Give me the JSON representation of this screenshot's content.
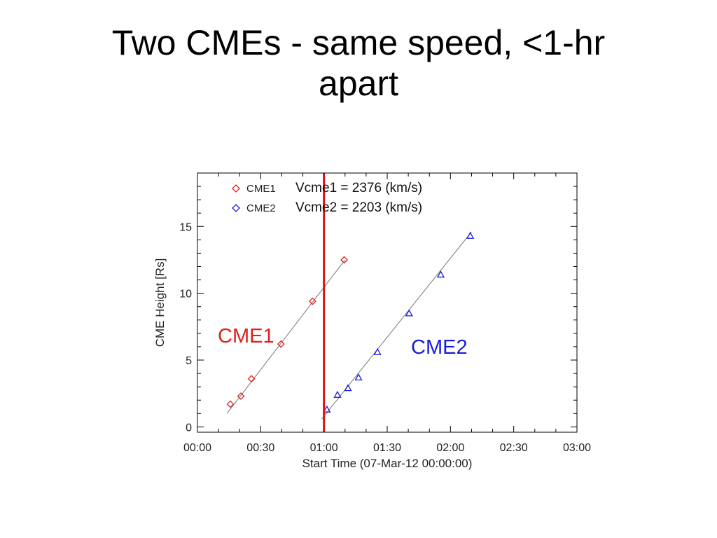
{
  "slide": {
    "title_line1": "Two CMEs - same speed, <1-hr",
    "title_line2": "apart"
  },
  "colors": {
    "cme1": "#e0201c",
    "cme2": "#1a1ae0",
    "marker_line": "#d61414",
    "fit_line": "#777777"
  },
  "chart_data": {
    "type": "scatter",
    "xlabel": "Start Time (07-Mar-12 00:00:00)",
    "ylabel": "CME Height [Rs]",
    "x_units": "minutes after start time",
    "xlim": [
      0,
      180
    ],
    "ylim": [
      -0.4,
      19
    ],
    "x_ticks": [
      {
        "value": 0,
        "label": "00:00"
      },
      {
        "value": 30,
        "label": "00:30"
      },
      {
        "value": 60,
        "label": "01:00"
      },
      {
        "value": 90,
        "label": "01:30"
      },
      {
        "value": 120,
        "label": "02:00"
      },
      {
        "value": 150,
        "label": "02:30"
      },
      {
        "value": 180,
        "label": "03:00"
      }
    ],
    "y_ticks": [
      {
        "value": 0,
        "label": "0"
      },
      {
        "value": 5,
        "label": "5"
      },
      {
        "value": 10,
        "label": "10"
      },
      {
        "value": 15,
        "label": "15"
      }
    ],
    "vertical_marker_x": 60,
    "series": [
      {
        "name": "CME1",
        "marker": "diamond",
        "speed_label": "Vcme1 =  2376 (km/s)",
        "callout": "CME1",
        "points": [
          {
            "x": 15.6,
            "y": 1.7
          },
          {
            "x": 20.6,
            "y": 2.3
          },
          {
            "x": 25.6,
            "y": 3.6
          },
          {
            "x": 39.6,
            "y": 6.2
          },
          {
            "x": 54.6,
            "y": 9.4
          },
          {
            "x": 69.6,
            "y": 12.5
          }
        ],
        "fit": [
          {
            "x": 14.0,
            "y": 1.0
          },
          {
            "x": 70.0,
            "y": 12.5
          }
        ]
      },
      {
        "name": "CME2",
        "marker": "triangle",
        "speed_label": "Vcme2 =  2203 (km/s)",
        "callout": "CME2",
        "points": [
          {
            "x": 61.4,
            "y": 1.3
          },
          {
            "x": 66.4,
            "y": 2.4
          },
          {
            "x": 71.4,
            "y": 2.9
          },
          {
            "x": 76.4,
            "y": 3.7
          },
          {
            "x": 85.4,
            "y": 5.6
          },
          {
            "x": 100.4,
            "y": 8.5
          },
          {
            "x": 115.4,
            "y": 11.4
          },
          {
            "x": 129.4,
            "y": 14.3
          }
        ],
        "fit": [
          {
            "x": 59.0,
            "y": 0.6
          },
          {
            "x": 130.0,
            "y": 14.6
          }
        ]
      }
    ]
  }
}
